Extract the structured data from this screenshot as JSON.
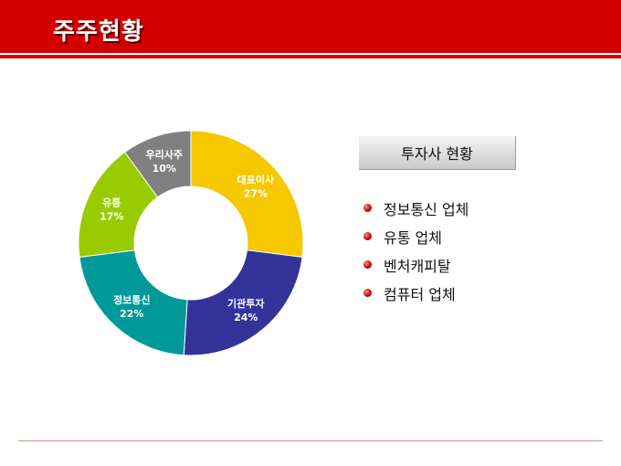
{
  "header": {
    "title": "주주현황"
  },
  "chart_data": {
    "type": "pie",
    "donut": true,
    "title": "",
    "slices": [
      {
        "label": "대표이사",
        "value": 27,
        "value_label": "27%",
        "color": "#f5c800"
      },
      {
        "label": "기관투자",
        "value": 24,
        "value_label": "24%",
        "color": "#33339a"
      },
      {
        "label": "정보통신",
        "value": 22,
        "value_label": "22%",
        "color": "#009999"
      },
      {
        "label": "유통",
        "value": 17,
        "value_label": "17%",
        "color": "#99cc00"
      },
      {
        "label": "우리사주",
        "value": 10,
        "value_label": "10%",
        "color": "#808080"
      }
    ]
  },
  "panel": {
    "title": "투자사 현황",
    "items": [
      "정보통신 업체",
      "유통 업체",
      "벤처캐피탈",
      "컴퓨터 업체"
    ]
  },
  "colors": {
    "accent": "#d40000"
  }
}
